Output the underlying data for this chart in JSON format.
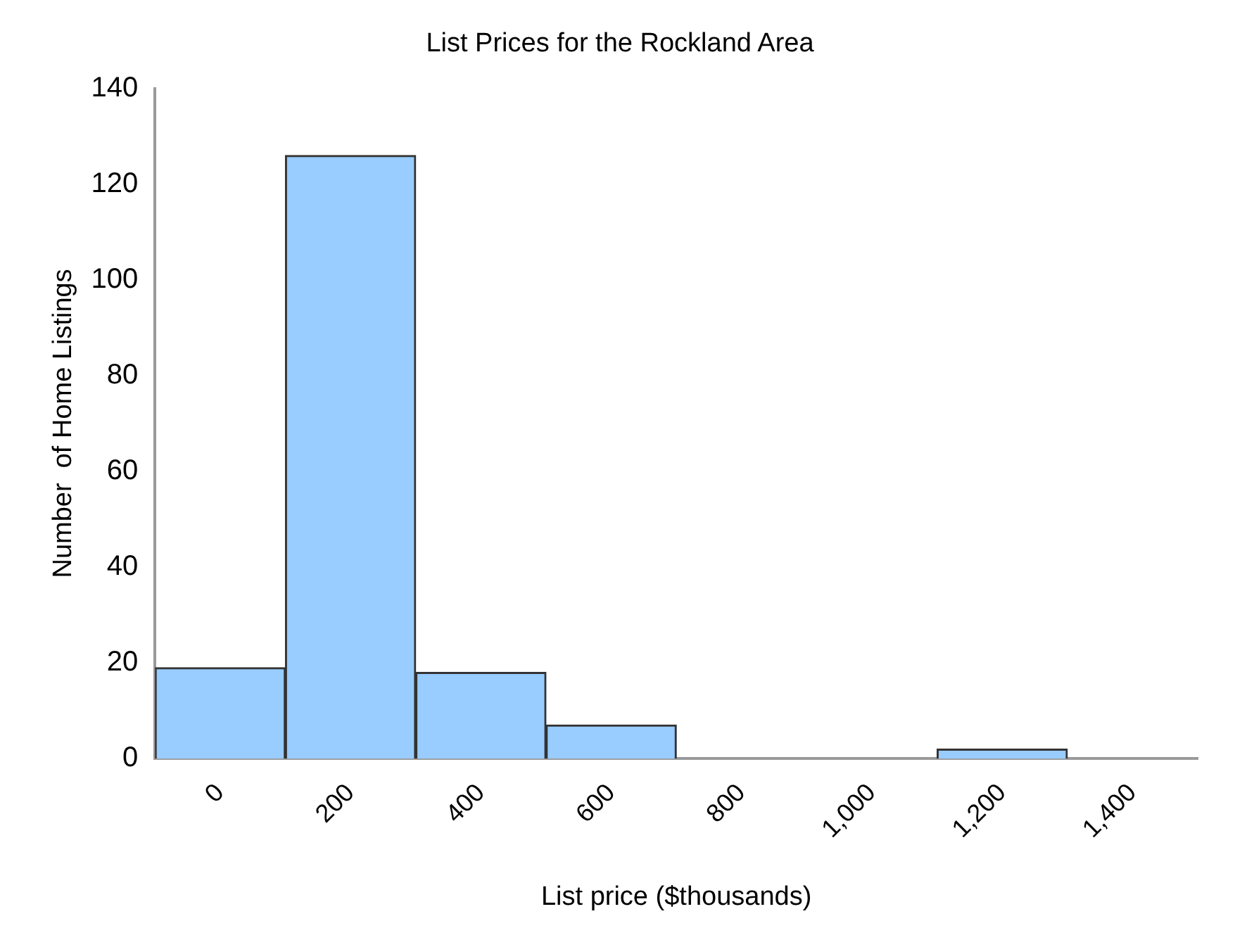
{
  "chart_data": {
    "type": "bar",
    "title": "List Prices for the Rockland Area",
    "xlabel": "List price ($thousands)",
    "ylabel": "Number  of Home Listings",
    "categories": [
      "0",
      "200",
      "400",
      "600",
      "800",
      "1,000",
      "1,200",
      "1,400"
    ],
    "values": [
      19,
      126,
      18,
      7,
      0,
      0,
      2,
      0
    ],
    "color": "#99ccff",
    "ylim": [
      0,
      140
    ],
    "yticks": [
      0,
      20,
      40,
      60,
      80,
      100,
      120,
      140
    ],
    "grid": false,
    "legend": false
  }
}
